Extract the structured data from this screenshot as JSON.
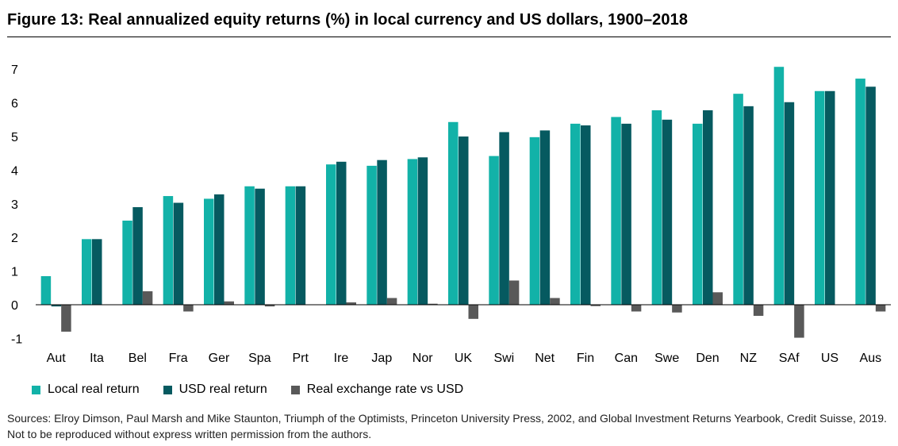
{
  "title": "Figure 13: Real annualized equity returns (%) in local currency and US dollars, 1900–2018",
  "source_text": "Sources: Elroy Dimson, Paul Marsh and Mike Staunton, Triumph of the Optimists, Princeton University Press, 2002, and Global Investment Returns Yearbook, Credit Suisse, 2019. Not to be reproduced without express written permission from the authors.",
  "colors": {
    "local": "#12b2a8",
    "usd": "#065a60",
    "fx": "#595959"
  },
  "chart_data": {
    "type": "bar",
    "title": "Figure 13: Real annualized equity returns (%) in local currency and US dollars, 1900–2018",
    "xlabel": "",
    "ylabel": "",
    "ylim": [
      -1,
      7.5
    ],
    "yticks": [
      -1,
      0,
      1,
      2,
      3,
      4,
      5,
      6,
      7
    ],
    "grid": false,
    "legend_position": "bottom-left",
    "categories": [
      "Aut",
      "Ita",
      "Bel",
      "Fra",
      "Ger",
      "Spa",
      "Prt",
      "Ire",
      "Jap",
      "Nor",
      "UK",
      "Swi",
      "Net",
      "Fin",
      "Can",
      "Swe",
      "Den",
      "NZ",
      "SAf",
      "US",
      "Aus"
    ],
    "series": [
      {
        "name": "Local real return",
        "color": "#12b2a8",
        "values": [
          0.85,
          1.95,
          2.5,
          3.23,
          3.15,
          3.52,
          3.52,
          4.17,
          4.13,
          4.33,
          5.43,
          4.42,
          4.98,
          5.38,
          5.58,
          5.78,
          5.38,
          6.27,
          7.07,
          6.35,
          6.72
        ]
      },
      {
        "name": "USD real return",
        "color": "#065a60",
        "values": [
          -0.05,
          1.95,
          2.9,
          3.03,
          3.28,
          3.45,
          3.52,
          4.25,
          4.3,
          4.38,
          5.0,
          5.13,
          5.18,
          5.33,
          5.38,
          5.5,
          5.78,
          5.9,
          6.02,
          6.35,
          6.48
        ]
      },
      {
        "name": "Real exchange rate vs USD",
        "color": "#595959",
        "values": [
          -0.8,
          0.0,
          0.4,
          -0.2,
          0.1,
          -0.05,
          0.0,
          0.07,
          0.2,
          0.03,
          -0.42,
          0.72,
          0.2,
          -0.04,
          -0.2,
          -0.23,
          0.37,
          -0.33,
          -0.98,
          0.0,
          -0.2
        ]
      }
    ]
  }
}
